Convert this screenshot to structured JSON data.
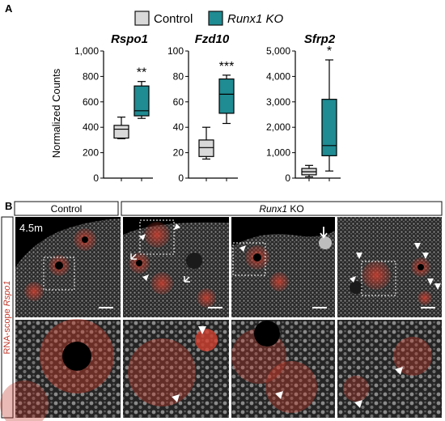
{
  "panel_labels": {
    "a": "A",
    "b": "B"
  },
  "legend": {
    "items": [
      {
        "label": "Control",
        "color": "#d9d9d9",
        "italic": false
      },
      {
        "label": "Runx1 KO",
        "color": "#1f8b92",
        "italic": true
      }
    ]
  },
  "colors": {
    "control": "#d9d9d9",
    "ko": "#1f8b92",
    "outline": "#111111",
    "stain": "#c0392b"
  },
  "chart_data": [
    {
      "type": "box",
      "title": "Rspo1",
      "ylabel": "Normalized Counts",
      "ylim": [
        0,
        1000
      ],
      "yticks": [
        0,
        200,
        400,
        600,
        800,
        1000
      ],
      "ytick_labels": [
        "0",
        "200",
        "400",
        "600",
        "800",
        "1,000"
      ],
      "significance": "**",
      "series": [
        {
          "name": "Control",
          "whisker_low": 310,
          "q1": 315,
          "median": 385,
          "q3": 415,
          "whisker_high": 480
        },
        {
          "name": "Runx1 KO",
          "whisker_low": 470,
          "q1": 490,
          "median": 530,
          "q3": 725,
          "whisker_high": 760
        }
      ]
    },
    {
      "type": "box",
      "title": "Fzd10",
      "ylabel": "",
      "ylim": [
        0,
        100
      ],
      "yticks": [
        0,
        20,
        40,
        60,
        80,
        100
      ],
      "ytick_labels": [
        "0",
        "20",
        "40",
        "60",
        "80",
        "100"
      ],
      "significance": "***",
      "series": [
        {
          "name": "Control",
          "whisker_low": 15,
          "q1": 17,
          "median": 24,
          "q3": 30,
          "whisker_high": 40
        },
        {
          "name": "Runx1 KO",
          "whisker_low": 43,
          "q1": 51,
          "median": 66,
          "q3": 78,
          "whisker_high": 81
        }
      ]
    },
    {
      "type": "box",
      "title": "Sfrp2",
      "ylabel": "",
      "ylim": [
        0,
        5000
      ],
      "yticks": [
        0,
        1000,
        2000,
        3000,
        4000,
        5000
      ],
      "ytick_labels": [
        "0",
        "1,000",
        "2,000",
        "3,000",
        "4,000",
        "5,000"
      ],
      "significance": "*",
      "series": [
        {
          "name": "Control",
          "whisker_low": 50,
          "q1": 130,
          "median": 250,
          "q3": 380,
          "whisker_high": 500
        },
        {
          "name": "Runx1 KO",
          "whisker_low": 280,
          "q1": 880,
          "median": 1280,
          "q3": 3100,
          "whisker_high": 4650
        }
      ]
    }
  ],
  "micrographs": {
    "header_control": "Control",
    "header_ko_gene": "Runx1",
    "header_ko_suffix": " KO",
    "age_label": "4.5m",
    "side_label_prefix": "RNA-scope ",
    "side_label_gene": "Rspo1"
  }
}
